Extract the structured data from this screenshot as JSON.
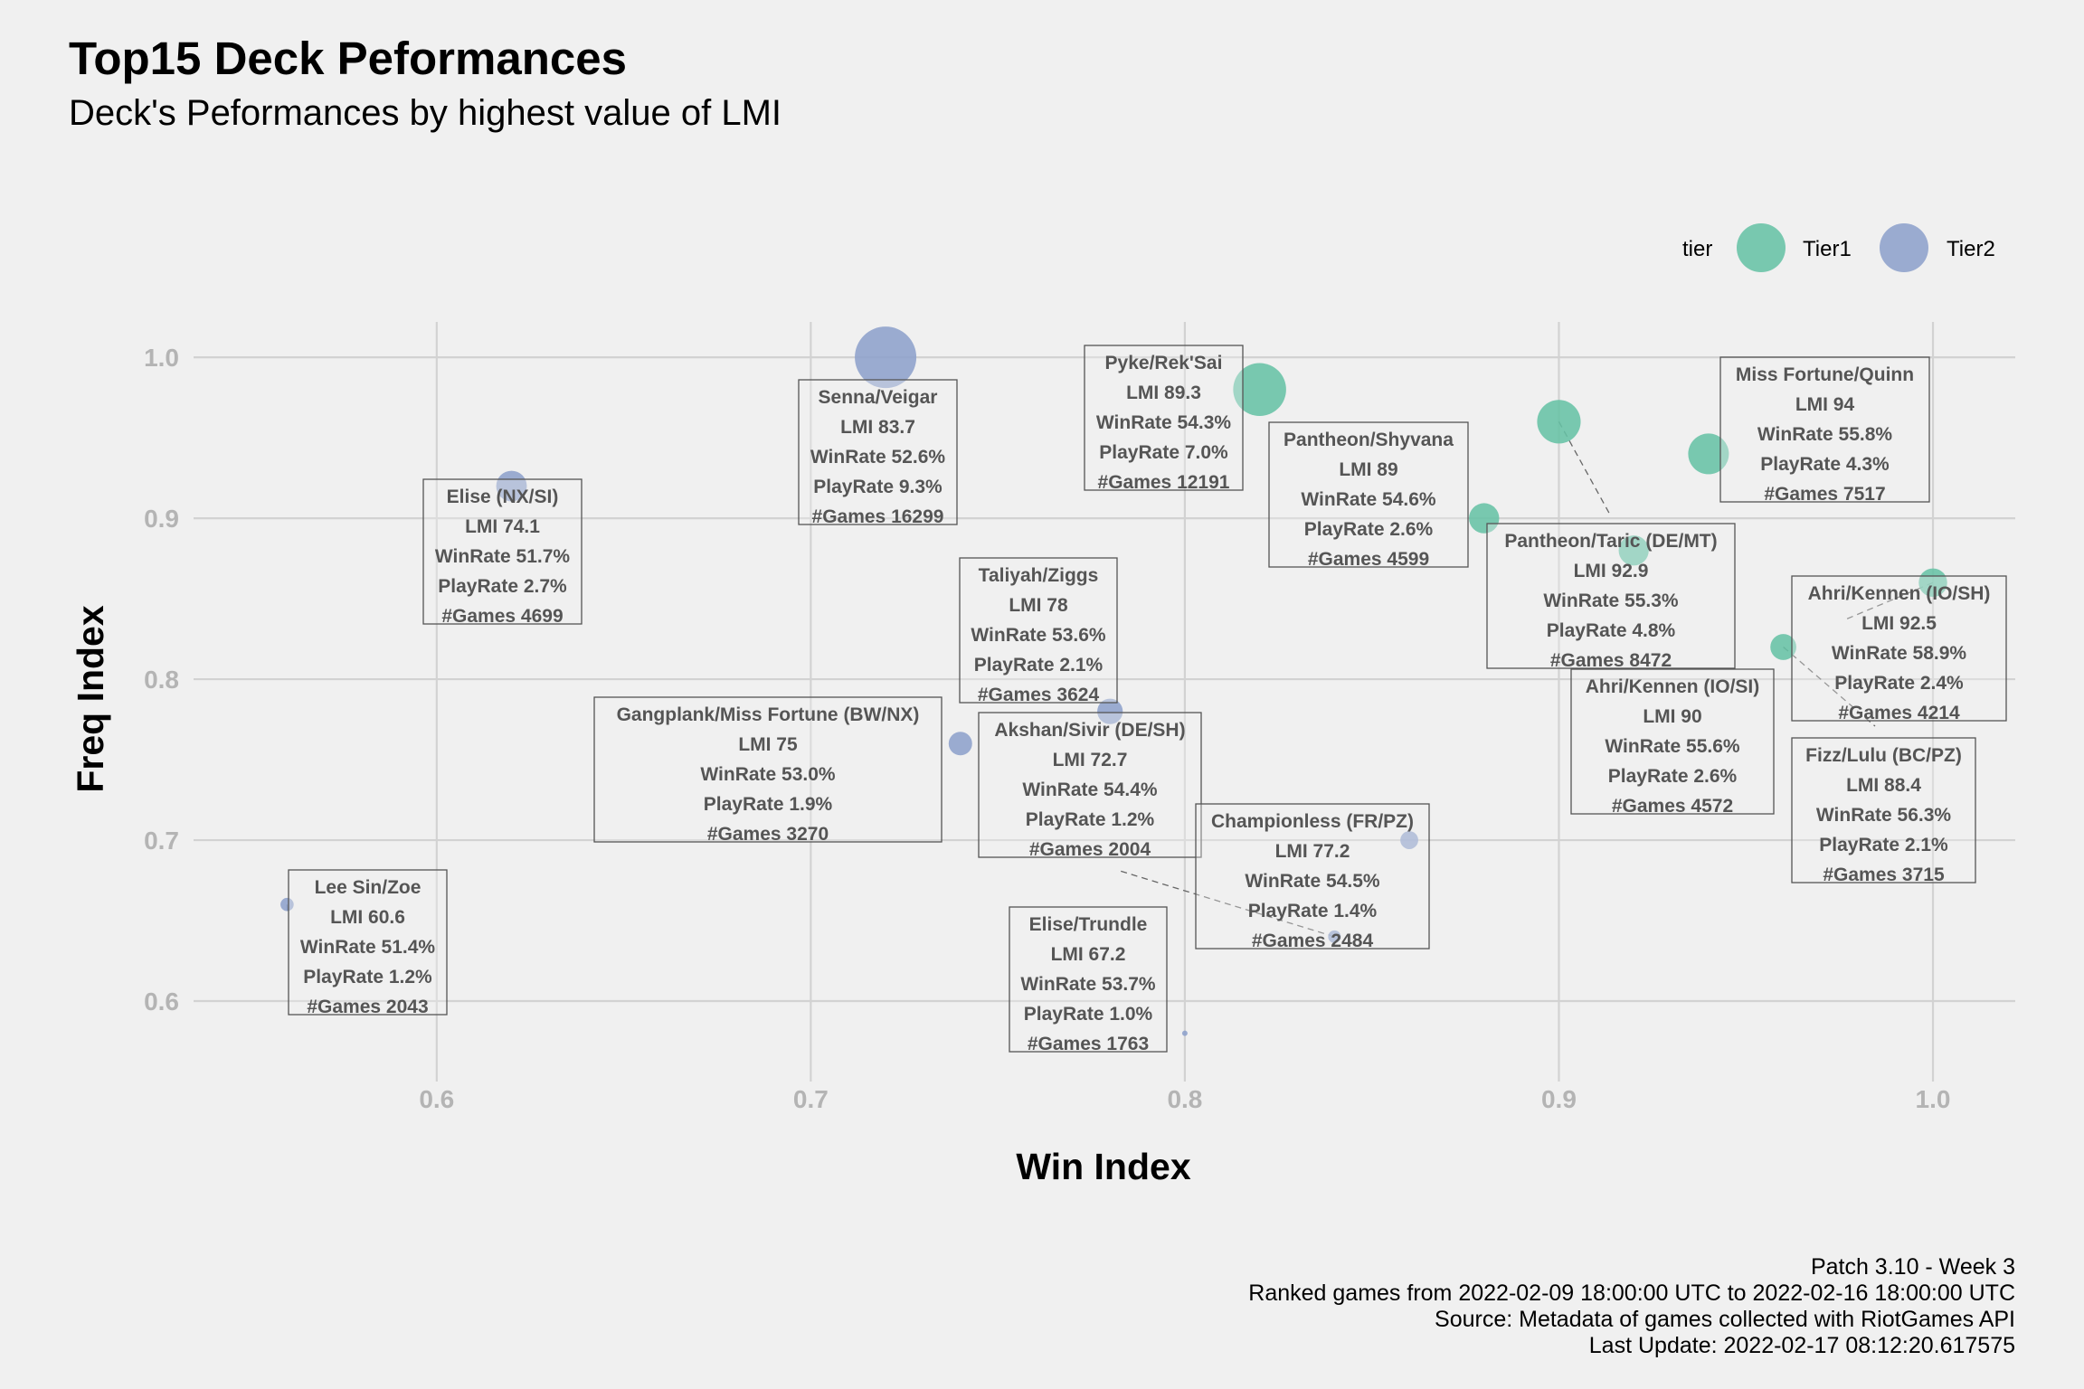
{
  "header": {
    "title": "Top15 Deck Peformances",
    "subtitle": "Deck's Peformances by highest value of LMI"
  },
  "caption": {
    "lines": [
      "Patch 3.10 - Week 3",
      "Ranked games from 2022-02-09 18:00:00 UTC to 2022-02-16 18:00:00 UTC",
      "Source: Metadata of games collected with RiotGames API",
      "Last Update: 2022-02-17 08:12:20.617575"
    ]
  },
  "colors": {
    "Tier1": "#66c2a5",
    "Tier2": "#8da0cb",
    "background": "#f0f0f0",
    "grid": "#d2d2d2",
    "tick_text": "#b4b4b4",
    "label_text": "#555555"
  },
  "chart_data": {
    "type": "scatter",
    "title": "Top15 Deck Peformances",
    "subtitle": "Deck's Peformances by highest value of LMI",
    "xlabel": "Win Index",
    "ylabel": "Freq Index",
    "xlim": [
      0.535,
      1.022
    ],
    "ylim": [
      0.55,
      1.022
    ],
    "xticks": [
      0.6,
      0.7,
      0.8,
      0.9,
      1.0
    ],
    "xtick_labels": [
      "0.6",
      "0.7",
      "0.8",
      "0.9",
      "1.0"
    ],
    "yticks": [
      0.6,
      0.7,
      0.8,
      0.9,
      1.0
    ],
    "ytick_labels": [
      "0.6",
      "0.7",
      "0.8",
      "0.9",
      "1.0"
    ],
    "grid": true,
    "legend": {
      "title": "tier",
      "position": "top-right",
      "entries": [
        "Tier1",
        "Tier2"
      ]
    },
    "points": [
      {
        "deck": "Pyke/Rek'Sai",
        "tier": "Tier1",
        "win_index": 0.82,
        "freq_index": 0.98,
        "lmi": "89.3",
        "winrate": "54.3%",
        "playrate": "7.0%",
        "games": "12191"
      },
      {
        "deck": "Senna/Veigar",
        "tier": "Tier2",
        "win_index": 0.72,
        "freq_index": 1.0,
        "lmi": "83.7",
        "winrate": "52.6%",
        "playrate": "9.3%",
        "games": "16299"
      },
      {
        "deck": "Miss Fortune/Quinn",
        "tier": "Tier1",
        "win_index": 0.94,
        "freq_index": 0.94,
        "lmi": "94",
        "winrate": "55.8%",
        "playrate": "4.3%",
        "games": "7517"
      },
      {
        "deck": "Pantheon/Shyvana",
        "tier": "Tier1",
        "win_index": 0.88,
        "freq_index": 0.9,
        "lmi": "89",
        "winrate": "54.6%",
        "playrate": "2.6%",
        "games": "4599"
      },
      {
        "deck": "Pantheon/Taric (DE/MT)",
        "tier": "Tier1",
        "win_index": 0.9,
        "freq_index": 0.96,
        "lmi": "92.9",
        "winrate": "55.3%",
        "playrate": "4.8%",
        "games": "8472"
      },
      {
        "deck": "Elise (NX/SI)",
        "tier": "Tier2",
        "win_index": 0.62,
        "freq_index": 0.92,
        "lmi": "74.1",
        "winrate": "51.7%",
        "playrate": "2.7%",
        "games": "4699"
      },
      {
        "deck": "Ahri/Kennen (IO/SH)",
        "tier": "Tier1",
        "win_index": 1.0,
        "freq_index": 0.86,
        "lmi": "92.5",
        "winrate": "58.9%",
        "playrate": "2.4%",
        "games": "4214"
      },
      {
        "deck": "Ahri/Kennen (IO/SI)",
        "tier": "Tier1",
        "win_index": 0.92,
        "freq_index": 0.88,
        "lmi": "90",
        "winrate": "55.6%",
        "playrate": "2.6%",
        "games": "4572"
      },
      {
        "deck": "Fizz/Lulu (BC/PZ)",
        "tier": "Tier1",
        "win_index": 0.96,
        "freq_index": 0.82,
        "lmi": "88.4",
        "winrate": "56.3%",
        "playrate": "2.1%",
        "games": "3715"
      },
      {
        "deck": "Taliyah/Ziggs",
        "tier": "Tier2",
        "win_index": 0.78,
        "freq_index": 0.78,
        "lmi": "78",
        "winrate": "53.6%",
        "playrate": "2.1%",
        "games": "3624"
      },
      {
        "deck": "Gangplank/Miss Fortune (BW/NX)",
        "tier": "Tier2",
        "win_index": 0.74,
        "freq_index": 0.76,
        "lmi": "75",
        "winrate": "53.0%",
        "playrate": "1.9%",
        "games": "3270"
      },
      {
        "deck": "Akshan/Sivir (DE/SH)",
        "tier": "Tier2",
        "win_index": 0.84,
        "freq_index": 0.64,
        "lmi": "72.7",
        "winrate": "54.4%",
        "playrate": "1.2%",
        "games": "2004"
      },
      {
        "deck": "Championless (FR/PZ)",
        "tier": "Tier2",
        "win_index": 0.86,
        "freq_index": 0.7,
        "lmi": "77.2",
        "winrate": "54.5%",
        "playrate": "1.4%",
        "games": "2484"
      },
      {
        "deck": "Elise/Trundle",
        "tier": "Tier2",
        "win_index": 0.8,
        "freq_index": 0.58,
        "lmi": "67.2",
        "winrate": "53.7%",
        "playrate": "1.0%",
        "games": "1763"
      },
      {
        "deck": "Lee Sin/Zoe",
        "tier": "Tier2",
        "win_index": 0.56,
        "freq_index": 0.66,
        "lmi": "60.6",
        "winrate": "51.4%",
        "playrate": "1.2%",
        "games": "2043"
      }
    ]
  }
}
